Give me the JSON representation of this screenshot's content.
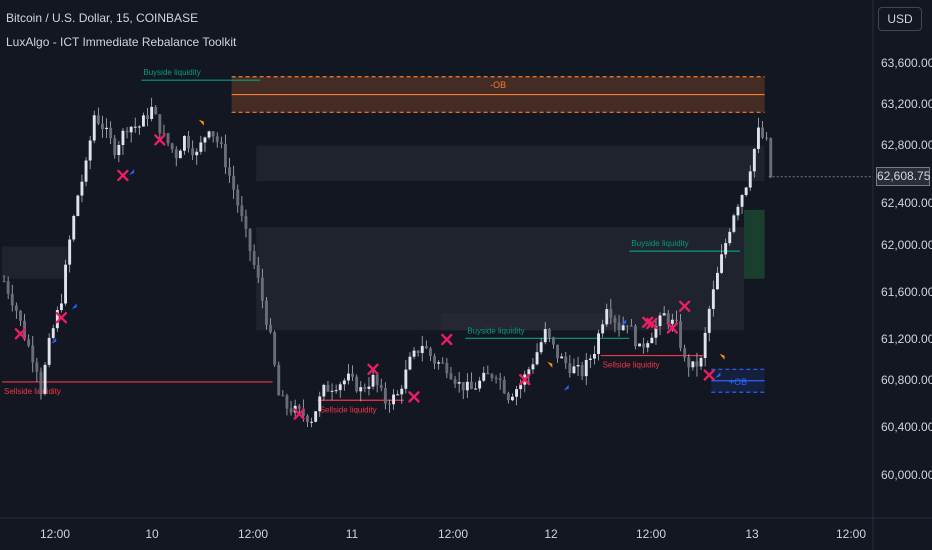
{
  "header": {
    "symbol_title": "Bitcoin / U.S. Dollar, 15, COINBASE",
    "indicator_title": "LuxAlgo - ICT Immediate Rebalance Toolkit"
  },
  "currency_button": "USD",
  "last_price": "62,608.75",
  "colors": {
    "background": "#131722",
    "up_candle": "#d1d4dc",
    "buyside": "#089981",
    "sellside": "#f23645",
    "bearish_ob": "#f57c30",
    "bullish_ob": "#2962ff",
    "rebalance_marker": "#e91e63",
    "up_arrow": "#2962ff",
    "down_arrow": "#ff9800"
  },
  "chart_data": {
    "type": "candlestick",
    "symbol": "BTC/USD",
    "timeframe": "15",
    "exchange": "COINBASE",
    "ylim": [
      59600,
      64000
    ],
    "y_ticks": [
      "63,600.00",
      "63,200.00",
      "62,800.00",
      "62,400.00",
      "62,000.00",
      "61,600.00",
      "61,200.00",
      "60,800.00",
      "60,400.00",
      "60,000.00"
    ],
    "x_ticks": [
      "12:00",
      "10",
      "12:00",
      "11",
      "12:00",
      "12",
      "12:00",
      "13",
      "12:00"
    ],
    "price_path": [
      [
        0,
        61700
      ],
      [
        3,
        61450
      ],
      [
        5,
        61220
      ],
      [
        8,
        60950
      ],
      [
        9,
        60750
      ],
      [
        11,
        61150
      ],
      [
        14,
        61550
      ],
      [
        16,
        62050
      ],
      [
        18,
        62450
      ],
      [
        20,
        62700
      ],
      [
        22,
        63150
      ],
      [
        24,
        63050
      ],
      [
        27,
        62850
      ],
      [
        30,
        63050
      ],
      [
        33,
        63050
      ],
      [
        36,
        63200
      ],
      [
        39,
        62950
      ],
      [
        42,
        62800
      ],
      [
        44,
        62950
      ],
      [
        47,
        62800
      ],
      [
        50,
        63050
      ],
      [
        53,
        62850
      ],
      [
        56,
        62500
      ],
      [
        59,
        62100
      ],
      [
        62,
        61700
      ],
      [
        65,
        61200
      ],
      [
        67,
        60700
      ],
      [
        69,
        60600
      ],
      [
        72,
        60550
      ],
      [
        75,
        60500
      ],
      [
        78,
        60750
      ],
      [
        81,
        60800
      ],
      [
        84,
        60850
      ],
      [
        87,
        60750
      ],
      [
        90,
        60850
      ],
      [
        93,
        60650
      ],
      [
        96,
        60700
      ],
      [
        99,
        61000
      ],
      [
        102,
        61150
      ],
      [
        105,
        61000
      ],
      [
        108,
        60950
      ],
      [
        111,
        60800
      ],
      [
        114,
        60750
      ],
      [
        117,
        60850
      ],
      [
        120,
        60900
      ],
      [
        123,
        60700
      ],
      [
        126,
        60800
      ],
      [
        129,
        61000
      ],
      [
        132,
        61250
      ],
      [
        135,
        61050
      ],
      [
        138,
        60950
      ],
      [
        141,
        60900
      ],
      [
        144,
        61100
      ],
      [
        147,
        61500
      ],
      [
        150,
        61300
      ],
      [
        152,
        61350
      ],
      [
        155,
        61100
      ],
      [
        158,
        61250
      ],
      [
        161,
        61400
      ],
      [
        164,
        61300
      ],
      [
        166,
        61000
      ],
      [
        168,
        60950
      ],
      [
        170,
        61000
      ],
      [
        172,
        61450
      ],
      [
        175,
        61900
      ],
      [
        178,
        62300
      ],
      [
        181,
        62550
      ],
      [
        184,
        63000
      ],
      [
        186,
        62900
      ],
      [
        187,
        62608.75
      ]
    ],
    "liquidity_levels": [
      {
        "label": "Buyside liquidity",
        "side": "buy",
        "price": 63450,
        "from": 34,
        "to": 63
      },
      {
        "label": "Buyside liquidity",
        "side": "buy",
        "price": 61200,
        "from": 113,
        "to": 153
      },
      {
        "label": "Buyside liquidity",
        "side": "buy",
        "price": 61960,
        "from": 153,
        "to": 180
      },
      {
        "label": "Sellside liquidity",
        "side": "sell",
        "price": 60820,
        "from": 0,
        "to": 66
      },
      {
        "label": "Sellside liquidity",
        "side": "sell",
        "price": 60660,
        "from": 77,
        "to": 98
      },
      {
        "label": "Sellside liquidity",
        "side": "sell",
        "price": 61050,
        "from": 146,
        "to": 171
      }
    ],
    "order_blocks": [
      {
        "label": "-OB",
        "type": "bearish",
        "top": 63480,
        "bottom": 63170,
        "from": 56,
        "to": 186
      },
      {
        "label": "+OB",
        "type": "bullish",
        "top": 60930,
        "bottom": 60730,
        "from": 173,
        "to": 186
      }
    ],
    "imbalance_zones": [
      {
        "top": 62880,
        "bottom": 62570,
        "from": 62,
        "to": 186
      },
      {
        "top": 62170,
        "bottom": 61270,
        "from": 62,
        "to": 181
      },
      {
        "top": 62000,
        "bottom": 61720,
        "from": 0,
        "to": 16
      },
      {
        "top": 61420,
        "bottom": 61270,
        "from": 107,
        "to": 150
      }
    ],
    "fvg_zone": {
      "top": 62320,
      "bottom": 61720,
      "from": 181,
      "to": 186
    },
    "rebalance_markers": [
      [
        4,
        61240
      ],
      [
        14,
        61380
      ],
      [
        29,
        62620
      ],
      [
        38,
        62930
      ],
      [
        72,
        60540
      ],
      [
        90,
        60930
      ],
      [
        100,
        60690
      ],
      [
        108,
        61190
      ],
      [
        127,
        60840
      ],
      [
        157,
        61340
      ],
      [
        158,
        61330
      ],
      [
        163,
        61290
      ],
      [
        166,
        61480
      ],
      [
        172,
        60880
      ]
    ],
    "up_arrows": [
      [
        12,
        61180
      ],
      [
        17,
        61480
      ],
      [
        31,
        62650
      ],
      [
        137,
        60770
      ],
      [
        151,
        61340
      ],
      [
        174,
        60880
      ]
    ],
    "down_arrows": [
      [
        48,
        63080
      ],
      [
        133,
        60970
      ],
      [
        175,
        61040
      ]
    ]
  }
}
